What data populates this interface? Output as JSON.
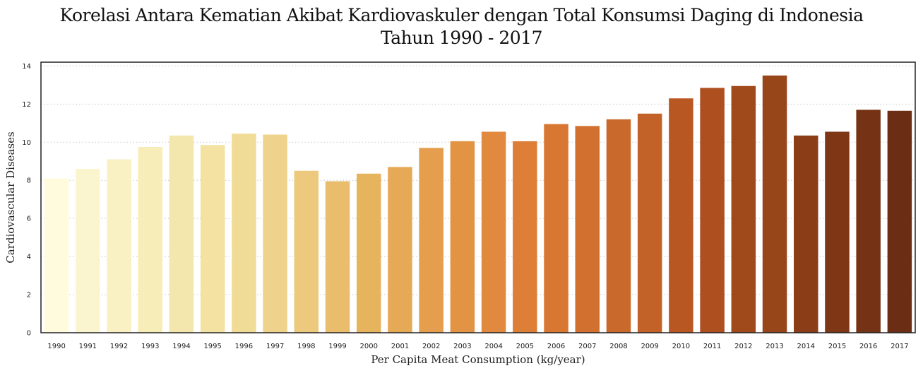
{
  "chart_data": {
    "type": "bar",
    "title_line1": "Korelasi Antara Kematian Akibat Kardiovaskuler dengan Total Konsumsi Daging di Indonesia",
    "title_line2": "Tahun 1990 - 2017",
    "xlabel": "Per Capita Meat Consumption (kg/year)",
    "ylabel": "Cardiovascular Diseases",
    "ylim": [
      0,
      14.2
    ],
    "yticks": [
      0,
      2,
      4,
      6,
      8,
      10,
      12,
      14
    ],
    "grid": "horizontal-dotted",
    "categories": [
      "1990",
      "1991",
      "1992",
      "1993",
      "1994",
      "1995",
      "1996",
      "1997",
      "1998",
      "1999",
      "2000",
      "2001",
      "2002",
      "2003",
      "2004",
      "2005",
      "2006",
      "2007",
      "2008",
      "2009",
      "2010",
      "2011",
      "2012",
      "2013",
      "2014",
      "2015",
      "2016",
      "2017"
    ],
    "values": [
      8.1,
      8.6,
      9.1,
      9.75,
      10.35,
      9.85,
      10.45,
      10.4,
      8.5,
      7.95,
      8.35,
      8.7,
      9.7,
      10.05,
      10.55,
      10.05,
      10.95,
      10.85,
      11.2,
      11.5,
      12.3,
      12.85,
      12.95,
      13.5,
      10.35,
      10.55,
      11.7,
      11.65
    ],
    "colors": [
      "#fffbdc",
      "#fbf5cf",
      "#f9f1c4",
      "#f7edb8",
      "#f4e7ad",
      "#f3e2a2",
      "#f1dc97",
      "#efd38c",
      "#ecc97c",
      "#e9bd6b",
      "#e7b45e",
      "#e6aa56",
      "#e49e4d",
      "#e29344",
      "#e1893e",
      "#de7f37",
      "#d87732",
      "#d2702f",
      "#c9692b",
      "#c26128",
      "#b95722",
      "#ad4f1f",
      "#a0491b",
      "#97461a",
      "#8a3d17",
      "#7f3615",
      "#753214",
      "#6b2e14"
    ]
  }
}
